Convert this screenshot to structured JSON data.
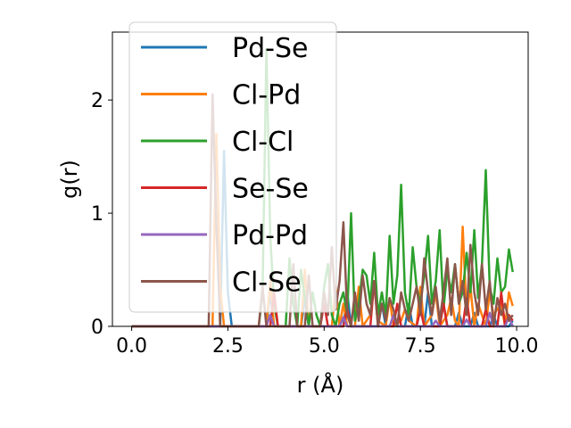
{
  "chart_data": {
    "type": "line",
    "xlabel": "r (Å)",
    "ylabel": "g(r)",
    "xlim": [
      -0.5,
      10.3
    ],
    "ylim": [
      0,
      2.6
    ],
    "xticks": [
      0.0,
      2.5,
      5.0,
      7.5,
      10.0
    ],
    "xtick_labels": [
      "0.0",
      "2.5",
      "5.0",
      "7.5",
      "10.0"
    ],
    "yticks": [
      0,
      1,
      2
    ],
    "ytick_labels": [
      "0",
      "1",
      "2"
    ],
    "grid": false,
    "legend_position": "upper-left",
    "series": [
      {
        "name": "Pd-Se",
        "color": "#1f77b4",
        "x": [
          0.0,
          2.3,
          2.4,
          2.5,
          2.6,
          3.5,
          3.6,
          3.7,
          4.4,
          4.5,
          4.6,
          5.5,
          5.6,
          5.7,
          6.4,
          6.5,
          6.6,
          7.1,
          7.2,
          7.3,
          7.6,
          7.7,
          7.8,
          8.0,
          8.1,
          8.2,
          8.4,
          8.5,
          8.6,
          8.8,
          8.9,
          9.0,
          9.3,
          9.4,
          9.5,
          9.8,
          9.9
        ],
        "y": [
          0.0,
          0.0,
          1.55,
          0.3,
          0.0,
          0.0,
          0.3,
          0.0,
          0.0,
          0.25,
          0.0,
          0.0,
          0.3,
          0.0,
          0.0,
          0.2,
          0.0,
          0.0,
          0.2,
          0.0,
          0.0,
          0.3,
          0.0,
          0.0,
          0.2,
          0.0,
          0.0,
          0.12,
          0.0,
          0.0,
          0.12,
          0.0,
          0.0,
          0.1,
          0.0,
          0.0,
          0.05
        ]
      },
      {
        "name": "Cl-Pd",
        "color": "#ff7f0e",
        "x": [
          0.0,
          2.1,
          2.2,
          2.3,
          2.4,
          3.5,
          3.6,
          3.7,
          4.4,
          4.5,
          4.6,
          5.2,
          5.3,
          5.4,
          5.5,
          5.6,
          5.8,
          5.9,
          6.0,
          6.2,
          6.3,
          6.4,
          6.6,
          6.7,
          6.8,
          7.0,
          7.1,
          7.2,
          7.4,
          7.5,
          7.6,
          7.8,
          7.9,
          8.0,
          8.2,
          8.3,
          8.4,
          8.5,
          8.6,
          8.7,
          8.8,
          8.9,
          9.0,
          9.2,
          9.3,
          9.4,
          9.6,
          9.7,
          9.8,
          9.9
        ],
        "y": [
          0.0,
          0.0,
          1.7,
          0.35,
          0.0,
          0.0,
          0.4,
          0.0,
          0.0,
          0.5,
          0.0,
          0.0,
          0.35,
          0.0,
          0.2,
          0.0,
          0.0,
          0.35,
          0.0,
          0.1,
          0.4,
          0.05,
          0.0,
          0.25,
          0.0,
          0.05,
          0.15,
          0.05,
          0.0,
          0.35,
          0.0,
          0.1,
          0.3,
          0.0,
          0.1,
          0.25,
          0.05,
          0.0,
          0.88,
          0.1,
          0.35,
          0.0,
          0.2,
          0.0,
          0.3,
          0.1,
          0.2,
          0.0,
          0.3,
          0.18
        ]
      },
      {
        "name": "Cl-Cl",
        "color": "#2ca02c",
        "x": [
          0.0,
          3.3,
          3.4,
          3.5,
          3.6,
          3.7,
          3.8,
          4.0,
          4.1,
          4.2,
          4.3,
          4.4,
          4.6,
          4.7,
          4.8,
          4.9,
          5.0,
          5.1,
          5.2,
          5.3,
          5.4,
          5.5,
          5.6,
          5.7,
          5.8,
          5.9,
          6.0,
          6.1,
          6.2,
          6.3,
          6.4,
          6.5,
          6.6,
          6.7,
          6.8,
          6.9,
          7.0,
          7.1,
          7.2,
          7.3,
          7.4,
          7.5,
          7.6,
          7.7,
          7.8,
          7.9,
          8.0,
          8.1,
          8.2,
          8.3,
          8.4,
          8.5,
          8.6,
          8.7,
          8.8,
          8.9,
          9.0,
          9.1,
          9.2,
          9.3,
          9.4,
          9.5,
          9.6,
          9.7,
          9.8,
          9.9
        ],
        "y": [
          0.0,
          0.0,
          0.3,
          2.45,
          0.8,
          0.2,
          0.0,
          0.0,
          0.6,
          0.2,
          0.0,
          0.5,
          0.0,
          0.3,
          0.1,
          0.0,
          0.35,
          0.55,
          0.1,
          0.0,
          0.2,
          0.3,
          0.1,
          1.0,
          0.05,
          0.2,
          0.5,
          0.45,
          0.2,
          0.65,
          0.1,
          0.3,
          0.1,
          0.8,
          0.2,
          0.45,
          1.25,
          0.3,
          0.1,
          0.7,
          0.35,
          0.2,
          0.45,
          0.8,
          0.2,
          0.4,
          0.85,
          0.15,
          0.5,
          0.3,
          0.55,
          0.2,
          0.3,
          0.65,
          0.3,
          0.85,
          0.25,
          0.55,
          1.38,
          0.35,
          0.2,
          0.6,
          0.3,
          0.35,
          0.68,
          0.48
        ]
      },
      {
        "name": "Se-Se",
        "color": "#d62728",
        "x": [
          0.0,
          3.6,
          3.7,
          3.8,
          4.9,
          5.0,
          5.1,
          5.5,
          5.6,
          5.7,
          6.2,
          6.3,
          6.4,
          6.8,
          6.9,
          7.0,
          7.4,
          7.5,
          7.6,
          8.0,
          8.1,
          8.2,
          8.6,
          8.7,
          8.8,
          9.1,
          9.2,
          9.3,
          9.5,
          9.6,
          9.7,
          9.8,
          9.9
        ],
        "y": [
          0.0,
          0.0,
          0.3,
          0.0,
          0.0,
          0.2,
          0.0,
          0.0,
          0.15,
          0.0,
          0.0,
          0.4,
          0.0,
          0.0,
          0.2,
          0.0,
          0.0,
          0.15,
          0.0,
          0.0,
          0.2,
          0.0,
          0.0,
          0.25,
          0.0,
          0.0,
          0.15,
          0.0,
          0.0,
          0.3,
          0.0,
          0.1,
          0.05
        ]
      },
      {
        "name": "Pd-Pd",
        "color": "#9467bd",
        "x": [
          0.0,
          3.5,
          3.6,
          3.7,
          5.4,
          5.5,
          5.6,
          6.7,
          6.8,
          6.9,
          7.8,
          7.9,
          8.0,
          8.6,
          8.7,
          8.8,
          9.2,
          9.3,
          9.4,
          9.7,
          9.8,
          9.9
        ],
        "y": [
          0.0,
          0.0,
          0.1,
          0.0,
          0.0,
          0.08,
          0.0,
          0.0,
          0.1,
          0.0,
          0.0,
          0.05,
          0.0,
          0.0,
          0.06,
          0.0,
          0.0,
          0.12,
          0.0,
          0.0,
          0.08,
          0.0
        ]
      },
      {
        "name": "Cl-Se",
        "color": "#8c564b",
        "x": [
          0.0,
          2.0,
          2.1,
          2.2,
          2.3,
          3.3,
          3.4,
          3.5,
          4.1,
          4.2,
          4.3,
          4.5,
          4.6,
          4.7,
          4.9,
          5.0,
          5.1,
          5.2,
          5.3,
          5.4,
          5.5,
          5.6,
          5.7,
          5.8,
          5.9,
          6.0,
          6.1,
          6.2,
          6.3,
          6.4,
          6.5,
          6.6,
          6.7,
          6.8,
          6.9,
          7.0,
          7.1,
          7.2,
          7.3,
          7.4,
          7.5,
          7.6,
          7.7,
          7.8,
          7.9,
          8.0,
          8.1,
          8.2,
          8.3,
          8.4,
          8.5,
          8.6,
          8.7,
          8.8,
          8.9,
          9.0,
          9.1,
          9.2,
          9.3,
          9.4,
          9.5,
          9.6,
          9.7,
          9.8,
          9.9
        ],
        "y": [
          0.0,
          0.0,
          2.05,
          0.9,
          0.0,
          0.0,
          0.35,
          0.0,
          0.0,
          0.55,
          0.0,
          0.0,
          0.45,
          0.0,
          0.0,
          0.3,
          0.1,
          0.7,
          0.15,
          0.4,
          0.92,
          0.1,
          0.0,
          0.3,
          0.05,
          0.45,
          0.2,
          0.1,
          0.4,
          0.0,
          0.2,
          0.05,
          0.25,
          0.15,
          0.0,
          0.3,
          0.15,
          0.05,
          0.2,
          0.35,
          0.1,
          0.6,
          0.3,
          0.1,
          0.35,
          0.05,
          0.3,
          0.6,
          0.1,
          0.55,
          0.2,
          0.4,
          0.1,
          0.72,
          0.3,
          0.1,
          0.55,
          0.15,
          0.4,
          0.0,
          0.25,
          0.1,
          0.2,
          0.05,
          0.1
        ]
      }
    ]
  }
}
